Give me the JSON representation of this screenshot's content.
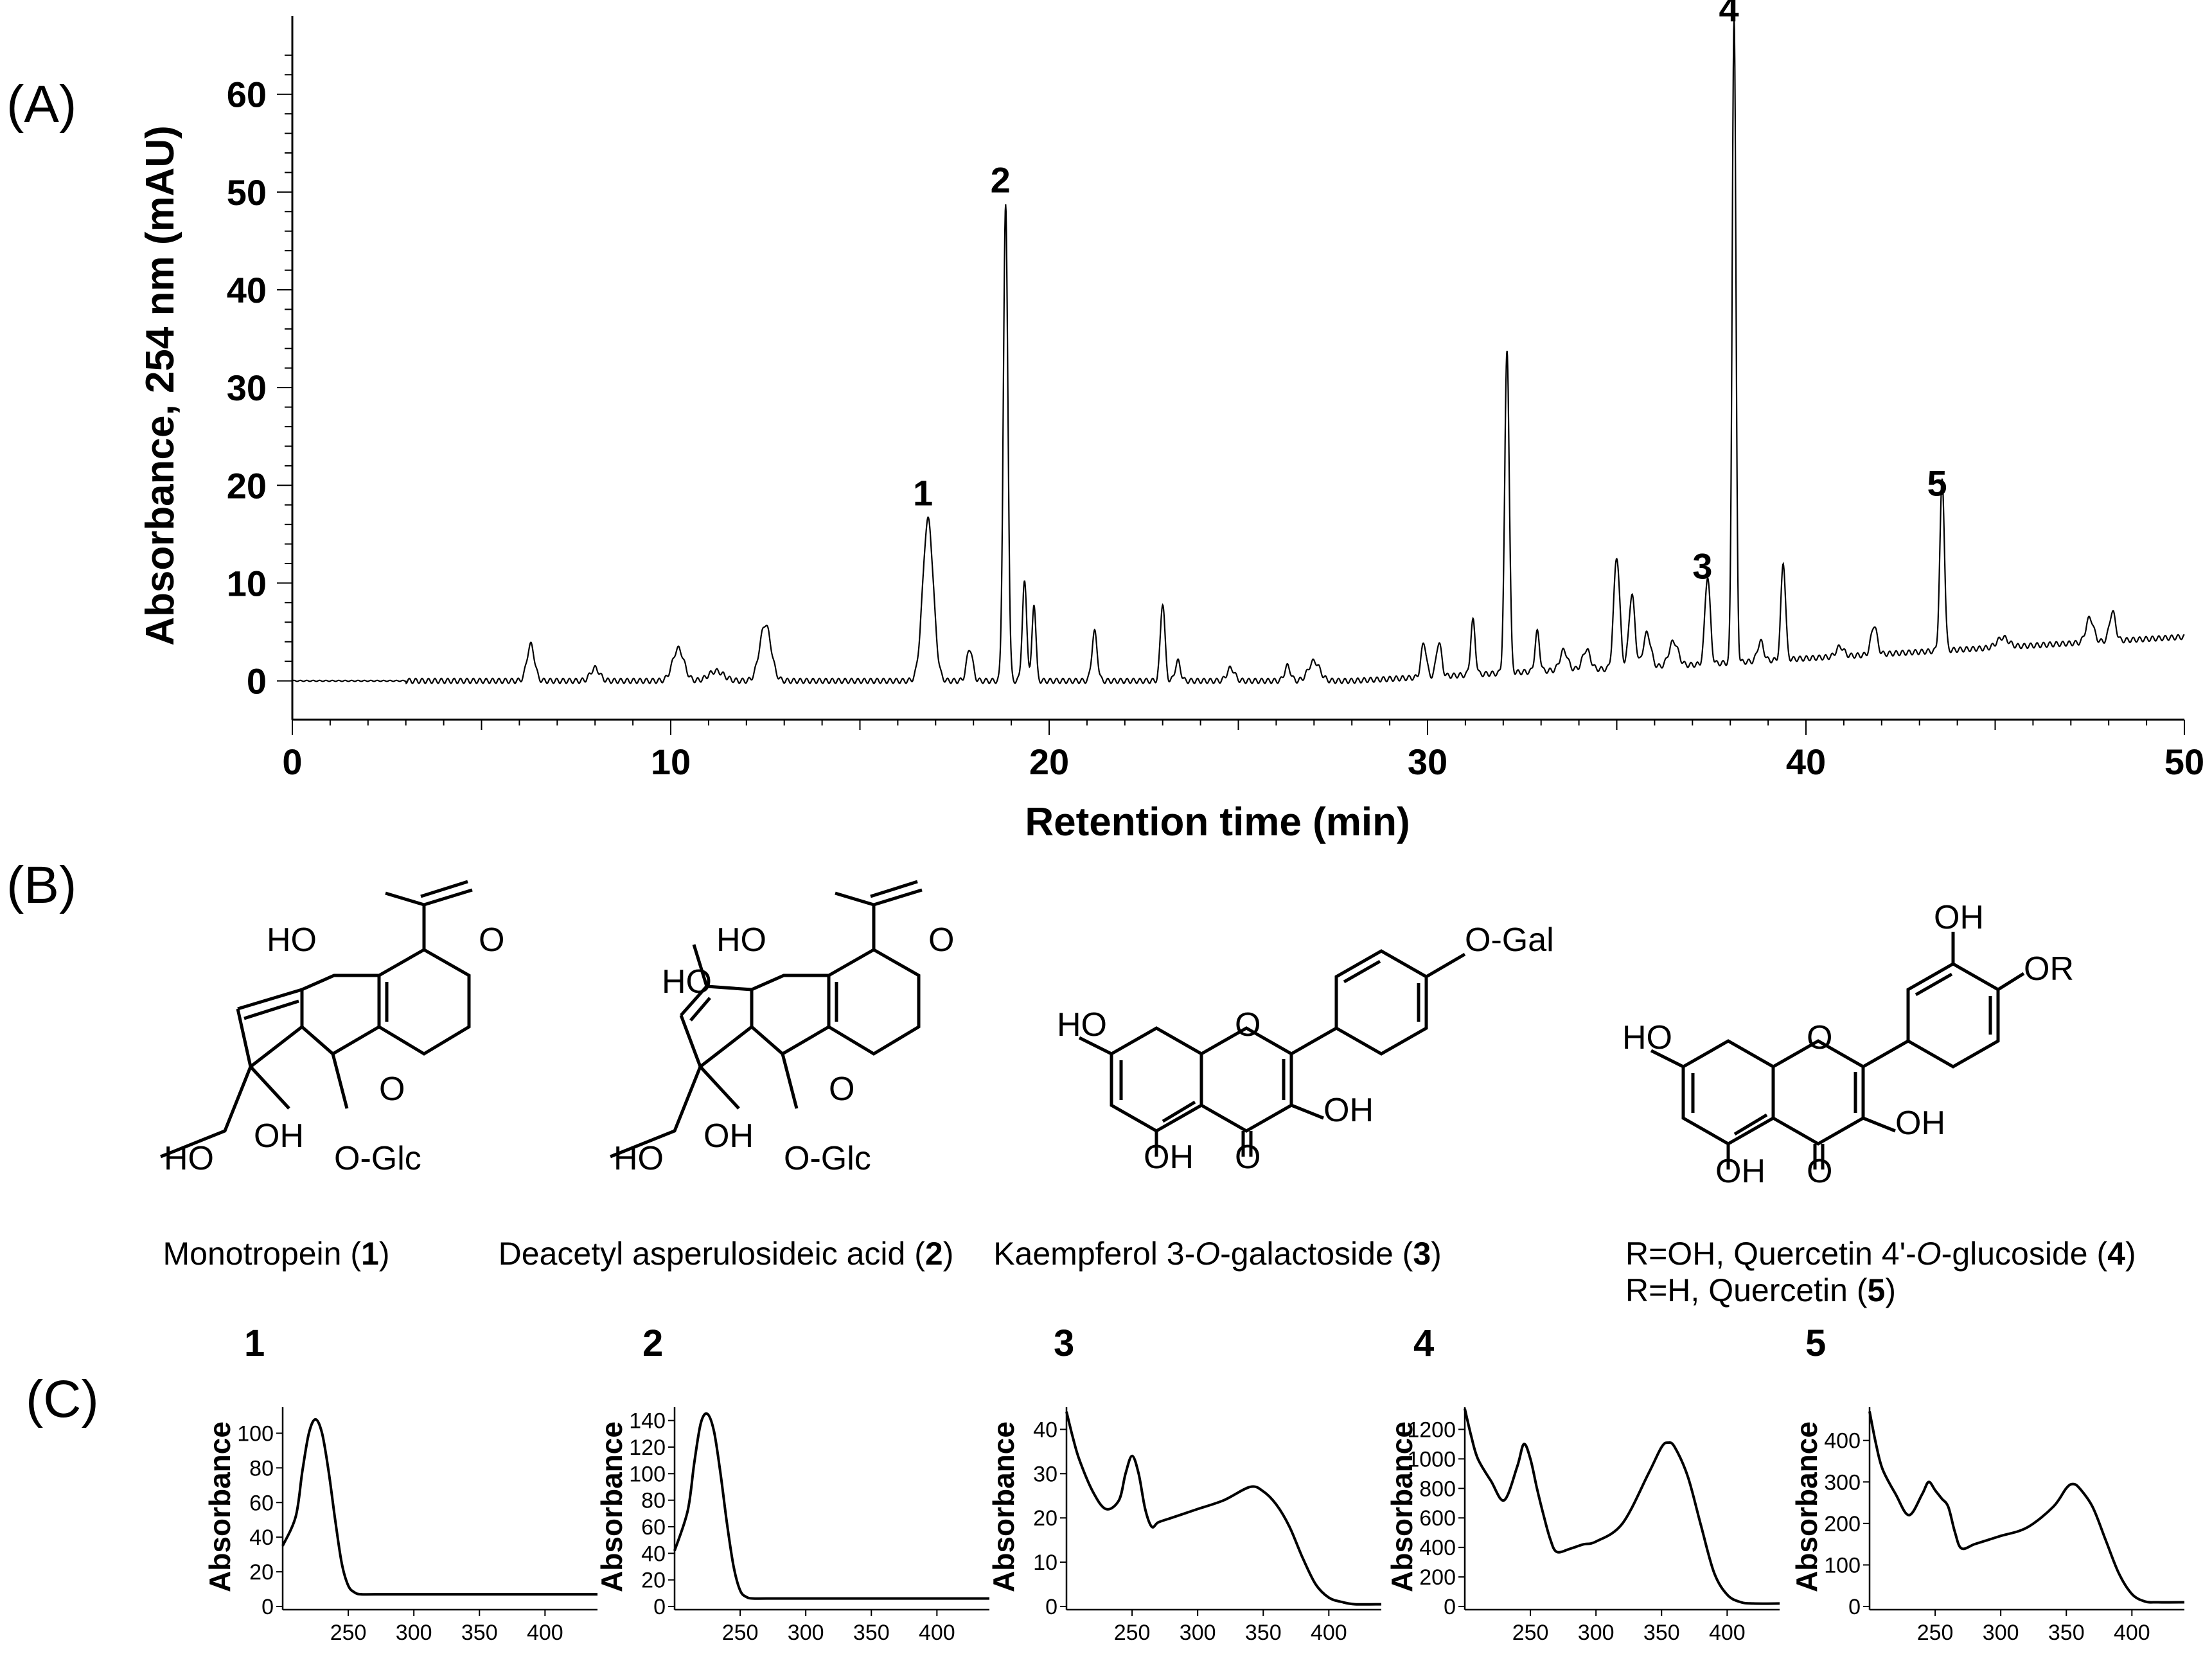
{
  "panel_labels": {
    "a": "(A)",
    "b": "(B)",
    "c": "(C)"
  },
  "chart_data": [
    {
      "type": "line",
      "panel": "A",
      "xlabel": "Retention time (min)",
      "ylabel": "Absorbance, 254 nm (mAU)",
      "xlim": [
        0,
        50
      ],
      "ylim": [
        -2,
        68
      ],
      "xticks": [
        0,
        10,
        20,
        30,
        40,
        50
      ],
      "yticks": [
        0,
        10,
        20,
        30,
        40,
        50,
        60
      ],
      "baseline": 0,
      "peaks": [
        {
          "x": 6.3,
          "y": 3.7,
          "w": 0.1
        },
        {
          "x": 8.0,
          "y": 1.3,
          "w": 0.12
        },
        {
          "x": 10.2,
          "y": 3.3,
          "w": 0.15
        },
        {
          "x": 11.2,
          "y": 1.0,
          "w": 0.2
        },
        {
          "x": 12.5,
          "y": 5.8,
          "w": 0.15
        },
        {
          "x": 16.8,
          "y": 16.5,
          "w": 0.14
        },
        {
          "x": 17.9,
          "y": 3.3,
          "w": 0.08
        },
        {
          "x": 18.85,
          "y": 48.5,
          "w": 0.06
        },
        {
          "x": 19.35,
          "y": 10.0,
          "w": 0.06
        },
        {
          "x": 19.6,
          "y": 8.0,
          "w": 0.05
        },
        {
          "x": 21.2,
          "y": 5.0,
          "w": 0.07
        },
        {
          "x": 23.0,
          "y": 8.0,
          "w": 0.06
        },
        {
          "x": 23.4,
          "y": 2.0,
          "w": 0.07
        },
        {
          "x": 24.8,
          "y": 1.3,
          "w": 0.1
        },
        {
          "x": 26.3,
          "y": 1.5,
          "w": 0.08
        },
        {
          "x": 27.0,
          "y": 2.0,
          "w": 0.15
        },
        {
          "x": 29.9,
          "y": 3.5,
          "w": 0.07
        },
        {
          "x": 30.3,
          "y": 3.5,
          "w": 0.07
        },
        {
          "x": 31.2,
          "y": 5.5,
          "w": 0.06
        },
        {
          "x": 32.1,
          "y": 33.0,
          "w": 0.06
        },
        {
          "x": 32.9,
          "y": 4.0,
          "w": 0.06
        },
        {
          "x": 33.6,
          "y": 2.0,
          "w": 0.1
        },
        {
          "x": 34.2,
          "y": 2.0,
          "w": 0.1
        },
        {
          "x": 35.0,
          "y": 11.5,
          "w": 0.08
        },
        {
          "x": 35.4,
          "y": 7.5,
          "w": 0.08
        },
        {
          "x": 35.8,
          "y": 3.5,
          "w": 0.1
        },
        {
          "x": 36.5,
          "y": 2.5,
          "w": 0.12
        },
        {
          "x": 37.4,
          "y": 9.0,
          "w": 0.07
        },
        {
          "x": 38.1,
          "y": 66.0,
          "w": 0.05
        },
        {
          "x": 38.8,
          "y": 2.0,
          "w": 0.08
        },
        {
          "x": 39.4,
          "y": 10.0,
          "w": 0.06
        },
        {
          "x": 40.9,
          "y": 1.0,
          "w": 0.1
        },
        {
          "x": 41.8,
          "y": 3.0,
          "w": 0.08
        },
        {
          "x": 43.6,
          "y": 17.5,
          "w": 0.06
        },
        {
          "x": 45.2,
          "y": 1.0,
          "w": 0.15
        },
        {
          "x": 47.5,
          "y": 2.5,
          "w": 0.1
        },
        {
          "x": 48.1,
          "y": 3.0,
          "w": 0.08
        }
      ],
      "annotations": [
        {
          "label": "1",
          "x": 16.8,
          "y": 16.5
        },
        {
          "label": "2",
          "x": 18.85,
          "y": 48.5
        },
        {
          "label": "3",
          "x": 37.4,
          "y": 9.0
        },
        {
          "label": "4",
          "x": 38.1,
          "y": 66.0
        },
        {
          "label": "5",
          "x": 43.6,
          "y": 17.5
        }
      ]
    },
    {
      "type": "line",
      "panel": "C",
      "title": "1",
      "ylabel": "Absorbance",
      "xlim": [
        200,
        440
      ],
      "ylim": [
        0,
        115
      ],
      "xticks": [
        250,
        300,
        350,
        400
      ],
      "yticks": [
        0,
        20,
        40,
        60,
        80,
        100
      ],
      "x": [
        200,
        210,
        215,
        220,
        225,
        230,
        235,
        240,
        245,
        250,
        255,
        260,
        270,
        300,
        350,
        400,
        440
      ],
      "y": [
        35,
        52,
        78,
        100,
        108,
        100,
        78,
        50,
        25,
        12,
        8,
        7,
        7,
        7,
        7,
        7,
        7
      ]
    },
    {
      "type": "line",
      "panel": "C",
      "title": "2",
      "ylabel": "Absorbance",
      "xlim": [
        200,
        440
      ],
      "ylim": [
        0,
        150
      ],
      "xticks": [
        250,
        300,
        350,
        400
      ],
      "yticks": [
        0,
        20,
        40,
        60,
        80,
        100,
        120,
        140
      ],
      "x": [
        200,
        210,
        215,
        220,
        225,
        230,
        235,
        240,
        245,
        250,
        255,
        260,
        270,
        300,
        350,
        400,
        440
      ],
      "y": [
        42,
        72,
        108,
        138,
        145,
        132,
        100,
        62,
        30,
        12,
        7,
        6,
        6,
        6,
        6,
        6,
        6
      ]
    },
    {
      "type": "line",
      "panel": "C",
      "title": "3",
      "ylabel": "Absorbance",
      "xlim": [
        200,
        440
      ],
      "ylim": [
        0,
        45
      ],
      "xticks": [
        250,
        300,
        350,
        400
      ],
      "yticks": [
        0,
        10,
        20,
        30,
        40
      ],
      "x": [
        200,
        205,
        210,
        220,
        230,
        240,
        245,
        250,
        255,
        260,
        265,
        270,
        280,
        290,
        300,
        320,
        340,
        350,
        360,
        370,
        380,
        390,
        400,
        410,
        420,
        440
      ],
      "y": [
        44,
        38,
        33,
        26,
        22,
        24,
        30,
        34,
        30,
        22,
        18,
        19,
        20,
        21,
        22,
        24,
        27,
        26,
        23,
        18,
        11,
        5,
        2,
        1,
        0.5,
        0.5
      ]
    },
    {
      "type": "line",
      "panel": "C",
      "title": "4",
      "ylabel": "Absorbance",
      "xlim": [
        200,
        440
      ],
      "ylim": [
        0,
        1350
      ],
      "xticks": [
        250,
        300,
        350,
        400
      ],
      "yticks": [
        0,
        200,
        400,
        600,
        800,
        1000,
        1200
      ],
      "x": [
        200,
        205,
        210,
        220,
        230,
        240,
        245,
        250,
        255,
        260,
        265,
        270,
        280,
        290,
        300,
        320,
        340,
        350,
        355,
        360,
        370,
        380,
        390,
        400,
        410,
        420,
        440
      ],
      "y": [
        1340,
        1150,
        1000,
        850,
        720,
        950,
        1100,
        1000,
        800,
        620,
        460,
        370,
        390,
        420,
        440,
        560,
        900,
        1080,
        1110,
        1080,
        880,
        550,
        230,
        80,
        30,
        20,
        20
      ]
    },
    {
      "type": "line",
      "panel": "C",
      "title": "5",
      "ylabel": "Absorbance",
      "xlim": [
        200,
        440
      ],
      "ylim": [
        0,
        480
      ],
      "xticks": [
        250,
        300,
        350,
        400
      ],
      "yticks": [
        0,
        100,
        200,
        300,
        400
      ],
      "x": [
        200,
        205,
        210,
        220,
        230,
        240,
        245,
        250,
        255,
        260,
        265,
        270,
        280,
        290,
        300,
        320,
        340,
        350,
        355,
        360,
        370,
        380,
        390,
        400,
        410,
        420,
        440
      ],
      "y": [
        470,
        390,
        330,
        270,
        220,
        270,
        300,
        280,
        260,
        240,
        180,
        140,
        150,
        160,
        170,
        190,
        240,
        285,
        295,
        285,
        240,
        160,
        80,
        30,
        12,
        10,
        10
      ]
    }
  ],
  "structures": [
    {
      "caption_pre": "Monotropein (",
      "num": "1",
      "caption_post": ")",
      "labels": [
        "HO",
        "O",
        "O",
        "HO",
        "OH",
        "O-Glc"
      ]
    },
    {
      "caption_pre": "Deacetyl asperulosideic acid (",
      "num": "2",
      "caption_post": ")",
      "labels": [
        "HO",
        "O",
        "HO",
        "O",
        "HO",
        "OH",
        "O-Glc"
      ]
    },
    {
      "caption_pre": "Kaempferol 3-",
      "caption_ital": "O",
      "caption_mid": "-galactoside (",
      "num": "3",
      "caption_post": ")",
      "labels": [
        "O-Gal",
        "HO",
        "O",
        "OH",
        "OH",
        "O"
      ]
    },
    {
      "caption1_pre": "R=OH, Quercetin 4'-",
      "caption1_ital": "O",
      "caption1_mid": "-glucoside (",
      "num1": "4",
      "caption1_post": ")",
      "caption2_pre": "R=H, Quercetin (",
      "num2": "5",
      "caption2_post": ")",
      "labels": [
        "OH",
        "OR",
        "HO",
        "O",
        "OH",
        "OH",
        "O"
      ]
    }
  ]
}
